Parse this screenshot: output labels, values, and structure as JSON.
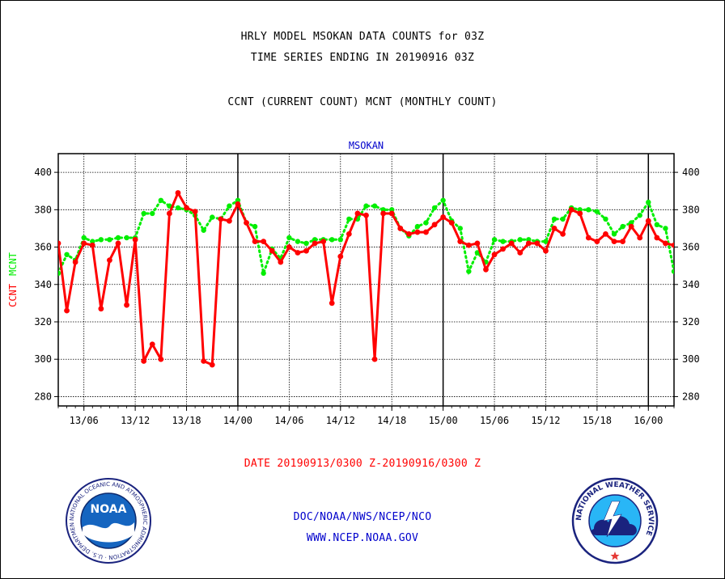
{
  "header": {
    "title_line1": "HRLY MODEL MSOKAN DATA COUNTS for 03Z",
    "title_line2": "TIME SERIES ENDING IN 20190916 03Z",
    "subtitle": "CCNT (CURRENT COUNT) MCNT (MONTHLY COUNT)"
  },
  "footer": {
    "date_range": "DATE 20190913/0300 Z-20190916/0300 Z",
    "org": "DOC/NOAA/NWS/NCEP/NCO",
    "url": "WWW.NCEP.NOAA.GOV"
  },
  "logos": {
    "noaa_text": "NOAA",
    "noaa_ring_text": "NATIONAL OCEANIC AND ATMOSPHERIC ADMINISTRATION · U.S. DEPARTMENT OF COMMERCE ·",
    "nws_ring_text": "NATIONAL WEATHER SERVICE"
  },
  "chart_data": {
    "type": "line",
    "title": "MSOKAN",
    "xlabel": "",
    "ylabel_ccnt": "CCNT",
    "ylabel_mcnt": "MCNT",
    "ylim": [
      275,
      410
    ],
    "xlim": [
      0,
      72
    ],
    "yticks": [
      280,
      300,
      320,
      340,
      360,
      380,
      400
    ],
    "xticks": [
      {
        "pos": 3,
        "label": "13/06"
      },
      {
        "pos": 9,
        "label": "13/12"
      },
      {
        "pos": 15,
        "label": "13/18"
      },
      {
        "pos": 21,
        "label": "14/00"
      },
      {
        "pos": 27,
        "label": "14/06"
      },
      {
        "pos": 33,
        "label": "14/12"
      },
      {
        "pos": 39,
        "label": "14/18"
      },
      {
        "pos": 45,
        "label": "15/00"
      },
      {
        "pos": 51,
        "label": "15/06"
      },
      {
        "pos": 57,
        "label": "15/12"
      },
      {
        "pos": 63,
        "label": "15/18"
      },
      {
        "pos": 69,
        "label": "16/00"
      }
    ],
    "day_boundaries": [
      21,
      45,
      69
    ],
    "grid": true,
    "colors": {
      "ccnt": "#ff0000",
      "mcnt": "#00ee00",
      "title": "#0000cc"
    },
    "series": [
      {
        "name": "CCNT",
        "color": "#ff0000",
        "values": [
          362,
          326,
          352,
          362,
          361,
          327,
          353,
          362,
          329,
          364,
          299,
          308,
          300,
          378,
          389,
          381,
          379,
          299,
          297,
          375,
          374,
          383,
          373,
          363,
          363,
          358,
          352,
          360,
          357,
          358,
          362,
          363,
          330,
          355,
          367,
          378,
          377,
          300,
          378,
          378,
          370,
          367,
          368,
          368,
          372,
          376,
          373,
          363,
          361,
          362,
          348,
          356,
          359,
          362,
          357,
          362,
          362,
          358,
          370,
          367,
          380,
          378,
          365,
          363,
          367,
          363,
          363,
          371,
          365,
          374,
          365,
          362,
          361
        ]
      },
      {
        "name": "MCNT",
        "color": "#00ee00",
        "values": [
          346,
          356,
          353,
          365,
          363,
          364,
          364,
          365,
          365,
          365,
          378,
          378,
          385,
          382,
          381,
          380,
          377,
          369,
          376,
          375,
          382,
          385,
          373,
          371,
          346,
          359,
          354,
          365,
          363,
          362,
          364,
          364,
          364,
          364,
          375,
          375,
          382,
          382,
          380,
          380,
          370,
          366,
          371,
          373,
          381,
          385,
          374,
          370,
          347,
          357,
          352,
          364,
          363,
          363,
          364,
          364,
          363,
          363,
          375,
          375,
          381,
          380,
          380,
          379,
          375,
          367,
          371,
          373,
          377,
          384,
          372,
          370,
          347
        ]
      }
    ]
  }
}
